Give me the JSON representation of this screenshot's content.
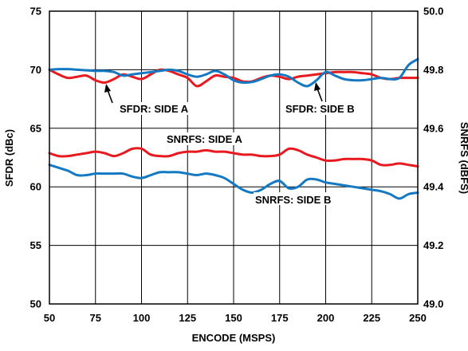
{
  "chart_data": {
    "type": "line",
    "title": "",
    "xlabel": "ENCODE (MSPS)",
    "ylabel": "SFDR (dBc)",
    "y2label": "SNRFS (dBFS)",
    "xlim": [
      50,
      250
    ],
    "ylim": [
      50,
      75
    ],
    "y2lim": [
      49.0,
      50.0
    ],
    "x_ticks": [
      50,
      75,
      100,
      125,
      150,
      175,
      200,
      225,
      250
    ],
    "y_ticks": [
      50,
      55,
      60,
      65,
      70,
      75
    ],
    "y2_ticks": [
      "49.0",
      "49.2",
      "49.4",
      "49.6",
      "49.8",
      "50.0"
    ],
    "grid": true,
    "colors": {
      "side_a": "#e8191f",
      "side_b": "#1479c2"
    },
    "series": [
      {
        "id": "sfdr_a",
        "axis": "left",
        "color": "#e8191f",
        "points": [
          [
            50,
            70.0
          ],
          [
            55,
            69.6
          ],
          [
            60,
            69.3
          ],
          [
            65,
            69.4
          ],
          [
            70,
            69.5
          ],
          [
            75,
            69.1
          ],
          [
            80,
            68.9
          ],
          [
            85,
            69.2
          ],
          [
            90,
            69.6
          ],
          [
            95,
            69.4
          ],
          [
            100,
            69.2
          ],
          [
            105,
            69.6
          ],
          [
            110,
            70.0
          ],
          [
            115,
            69.9
          ],
          [
            120,
            69.6
          ],
          [
            125,
            69.3
          ],
          [
            130,
            68.6
          ],
          [
            135,
            69.0
          ],
          [
            140,
            69.5
          ],
          [
            145,
            69.4
          ],
          [
            150,
            69.3
          ],
          [
            155,
            69.0
          ],
          [
            160,
            69.0
          ],
          [
            165,
            69.3
          ],
          [
            170,
            69.5
          ],
          [
            175,
            69.4
          ],
          [
            180,
            69.2
          ],
          [
            185,
            69.4
          ],
          [
            190,
            69.5
          ],
          [
            195,
            69.6
          ],
          [
            200,
            69.7
          ],
          [
            205,
            69.8
          ],
          [
            210,
            69.8
          ],
          [
            215,
            69.8
          ],
          [
            220,
            69.7
          ],
          [
            225,
            69.6
          ],
          [
            230,
            69.3
          ],
          [
            235,
            69.2
          ],
          [
            240,
            69.3
          ],
          [
            245,
            69.3
          ],
          [
            250,
            69.3
          ]
        ]
      },
      {
        "id": "sfdr_b",
        "axis": "left",
        "color": "#1479c2",
        "points": [
          [
            50,
            70.0
          ],
          [
            55,
            70.05
          ],
          [
            60,
            70.05
          ],
          [
            65,
            70.0
          ],
          [
            70,
            69.95
          ],
          [
            75,
            69.9
          ],
          [
            80,
            69.9
          ],
          [
            85,
            69.8
          ],
          [
            90,
            69.5
          ],
          [
            95,
            69.6
          ],
          [
            100,
            69.7
          ],
          [
            105,
            69.8
          ],
          [
            110,
            69.9
          ],
          [
            115,
            70.0
          ],
          [
            120,
            69.9
          ],
          [
            125,
            69.6
          ],
          [
            130,
            69.4
          ],
          [
            135,
            69.6
          ],
          [
            140,
            69.9
          ],
          [
            145,
            69.6
          ],
          [
            150,
            69.1
          ],
          [
            155,
            68.9
          ],
          [
            160,
            68.95
          ],
          [
            165,
            69.2
          ],
          [
            170,
            69.5
          ],
          [
            175,
            69.6
          ],
          [
            180,
            69.4
          ],
          [
            185,
            68.9
          ],
          [
            190,
            68.6
          ],
          [
            195,
            69.1
          ],
          [
            200,
            69.8
          ],
          [
            205,
            69.5
          ],
          [
            210,
            69.2
          ],
          [
            215,
            69.1
          ],
          [
            220,
            69.1
          ],
          [
            225,
            69.2
          ],
          [
            230,
            69.3
          ],
          [
            235,
            69.2
          ],
          [
            240,
            69.3
          ],
          [
            245,
            70.4
          ],
          [
            250,
            70.9
          ]
        ]
      },
      {
        "id": "snrfs_a",
        "axis": "right",
        "color": "#e8191f",
        "points": [
          [
            50,
            49.515
          ],
          [
            55,
            49.505
          ],
          [
            60,
            49.505
          ],
          [
            65,
            49.51
          ],
          [
            70,
            49.515
          ],
          [
            75,
            49.52
          ],
          [
            80,
            49.515
          ],
          [
            85,
            49.505
          ],
          [
            90,
            49.515
          ],
          [
            95,
            49.53
          ],
          [
            100,
            49.53
          ],
          [
            105,
            49.51
          ],
          [
            110,
            49.505
          ],
          [
            115,
            49.505
          ],
          [
            120,
            49.515
          ],
          [
            125,
            49.52
          ],
          [
            130,
            49.52
          ],
          [
            135,
            49.525
          ],
          [
            140,
            49.52
          ],
          [
            145,
            49.52
          ],
          [
            150,
            49.515
          ],
          [
            155,
            49.51
          ],
          [
            160,
            49.51
          ],
          [
            165,
            49.505
          ],
          [
            170,
            49.505
          ],
          [
            175,
            49.51
          ],
          [
            180,
            49.53
          ],
          [
            185,
            49.525
          ],
          [
            190,
            49.51
          ],
          [
            195,
            49.5
          ],
          [
            200,
            49.49
          ],
          [
            205,
            49.49
          ],
          [
            210,
            49.495
          ],
          [
            215,
            49.495
          ],
          [
            220,
            49.495
          ],
          [
            225,
            49.49
          ],
          [
            230,
            49.475
          ],
          [
            235,
            49.475
          ],
          [
            240,
            49.48
          ],
          [
            245,
            49.475
          ],
          [
            250,
            49.47
          ]
        ]
      },
      {
        "id": "snrfs_b",
        "axis": "right",
        "color": "#1479c2",
        "points": [
          [
            50,
            49.475
          ],
          [
            55,
            49.465
          ],
          [
            60,
            49.455
          ],
          [
            65,
            49.44
          ],
          [
            70,
            49.44
          ],
          [
            75,
            49.445
          ],
          [
            80,
            49.445
          ],
          [
            85,
            49.445
          ],
          [
            90,
            49.445
          ],
          [
            95,
            49.435
          ],
          [
            100,
            49.43
          ],
          [
            105,
            49.44
          ],
          [
            110,
            49.45
          ],
          [
            115,
            49.45
          ],
          [
            120,
            49.45
          ],
          [
            125,
            49.445
          ],
          [
            130,
            49.44
          ],
          [
            135,
            49.445
          ],
          [
            140,
            49.44
          ],
          [
            145,
            49.43
          ],
          [
            150,
            49.41
          ],
          [
            155,
            49.39
          ],
          [
            160,
            49.38
          ],
          [
            165,
            49.39
          ],
          [
            170,
            49.41
          ],
          [
            175,
            49.42
          ],
          [
            180,
            49.395
          ],
          [
            185,
            49.4
          ],
          [
            190,
            49.425
          ],
          [
            195,
            49.425
          ],
          [
            200,
            49.415
          ],
          [
            205,
            49.41
          ],
          [
            210,
            49.405
          ],
          [
            215,
            49.4
          ],
          [
            220,
            49.395
          ],
          [
            225,
            49.39
          ],
          [
            230,
            49.385
          ],
          [
            235,
            49.375
          ],
          [
            240,
            49.36
          ],
          [
            245,
            49.375
          ],
          [
            250,
            49.38
          ]
        ]
      }
    ],
    "annotations": [
      {
        "id": "sfdr-side-a",
        "text": "SFDR: SIDE A"
      },
      {
        "id": "sfdr-side-b",
        "text": "SFDR: SIDE B"
      },
      {
        "id": "snrfs-side-a",
        "text": "SNRFS: SIDE A"
      },
      {
        "id": "snrfs-side-b",
        "text": "SNRFS: SIDE B"
      }
    ]
  }
}
